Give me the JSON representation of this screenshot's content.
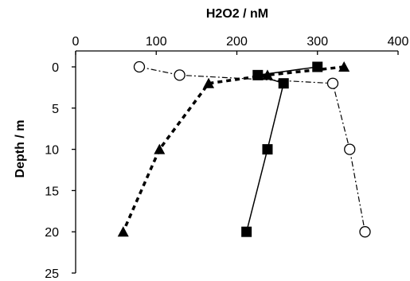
{
  "chart_data": {
    "type": "scatter",
    "title": "",
    "xlabel": "H2O2 / nM",
    "ylabel": "Depth / m",
    "x_axis_position": "top",
    "y_axis_inverted": true,
    "xlim": [
      0,
      400
    ],
    "ylim": [
      0,
      25
    ],
    "x_ticks": [
      "0",
      "100",
      "200",
      "300",
      "400"
    ],
    "y_ticks": [
      "0",
      "5",
      "10",
      "15",
      "20",
      "25"
    ],
    "grid": false,
    "legend": "none",
    "series": [
      {
        "marker": "square-filled",
        "line_style": "solid",
        "color": "#000000",
        "points": [
          {
            "x": 300,
            "y": 0
          },
          {
            "x": 226,
            "y": 1
          },
          {
            "x": 258,
            "y": 2
          },
          {
            "x": 238,
            "y": 10
          },
          {
            "x": 212,
            "y": 20
          }
        ]
      },
      {
        "marker": "triangle-filled",
        "line_style": "dotted-thick",
        "color": "#000000",
        "points": [
          {
            "x": 333,
            "y": 0
          },
          {
            "x": 238,
            "y": 1
          },
          {
            "x": 165,
            "y": 2
          },
          {
            "x": 104,
            "y": 10
          },
          {
            "x": 59,
            "y": 20
          }
        ]
      },
      {
        "marker": "circle-open",
        "line_style": "dash-dot",
        "color": "#000000",
        "points": [
          {
            "x": 79,
            "y": 0
          },
          {
            "x": 129,
            "y": 1
          },
          {
            "x": 319,
            "y": 2
          },
          {
            "x": 340,
            "y": 10
          },
          {
            "x": 359,
            "y": 20
          }
        ]
      }
    ]
  }
}
